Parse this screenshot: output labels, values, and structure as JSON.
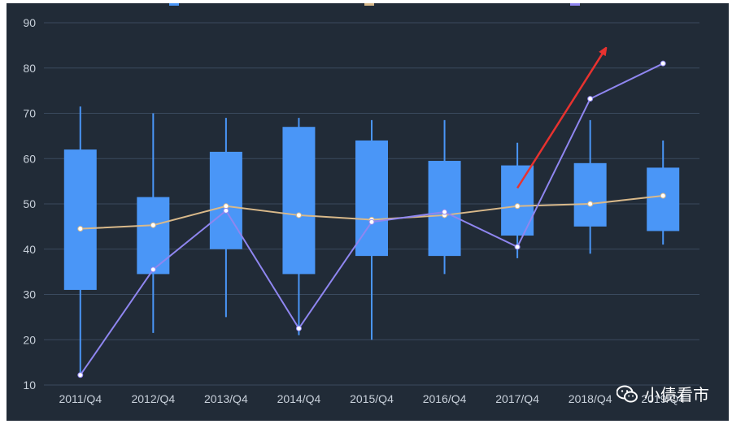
{
  "chart_data": {
    "type": "boxplot",
    "categories": [
      "2011/Q4",
      "2012/Q4",
      "2013/Q4",
      "2014/Q4",
      "2015/Q4",
      "2016/Q4",
      "2017/Q4",
      "2018/Q4",
      "2019/Q4"
    ],
    "boxes": [
      {
        "min": 12.5,
        "q1": 31,
        "q3": 62,
        "max": 71.5
      },
      {
        "min": 21.5,
        "q1": 34.5,
        "q3": 51.5,
        "max": 70
      },
      {
        "min": 25,
        "q1": 40,
        "q3": 61.5,
        "max": 69
      },
      {
        "min": 21,
        "q1": 34.5,
        "q3": 67,
        "max": 69
      },
      {
        "min": 20,
        "q1": 38.5,
        "q3": 64,
        "max": 68.5
      },
      {
        "min": 34.5,
        "q1": 38.5,
        "q3": 59.5,
        "max": 68.5
      },
      {
        "min": 38,
        "q1": 43,
        "q3": 58.5,
        "max": 63.5
      },
      {
        "min": 39,
        "q1": 45,
        "q3": 59,
        "max": 68.5
      },
      {
        "min": 41,
        "q1": 44,
        "q3": 58,
        "max": 64
      }
    ],
    "lines": [
      {
        "key": "avg",
        "color": "#d9b98a",
        "values": [
          44.5,
          45.3,
          49.5,
          47.5,
          46.5,
          47.5,
          49.5,
          50,
          51.8
        ]
      },
      {
        "key": "latest",
        "color": "#8f86f0",
        "values": [
          12.2,
          35.5,
          48.5,
          22.5,
          46,
          48.2,
          40.5,
          73.2,
          81
        ]
      }
    ],
    "ylim": [
      10,
      90
    ],
    "yticks": [
      10,
      20,
      30,
      40,
      50,
      60,
      70,
      80,
      90
    ],
    "grid": true,
    "colors": {
      "background": "#212b37",
      "grid": "#3a4a5e",
      "box": "#4a96f7",
      "whisker": "#4a96f7",
      "axis_text": "#c8d0da",
      "arrow": "#e8322f",
      "legend": [
        "#4a96f7",
        "#d9b98a",
        "#8f86f0"
      ]
    },
    "arrow": {
      "from": {
        "x": 6,
        "y": 53.5
      },
      "to": {
        "x": 7.2,
        "y": 84
      }
    }
  },
  "watermark": {
    "icon": "wechat-icon",
    "text": "小债看市"
  }
}
